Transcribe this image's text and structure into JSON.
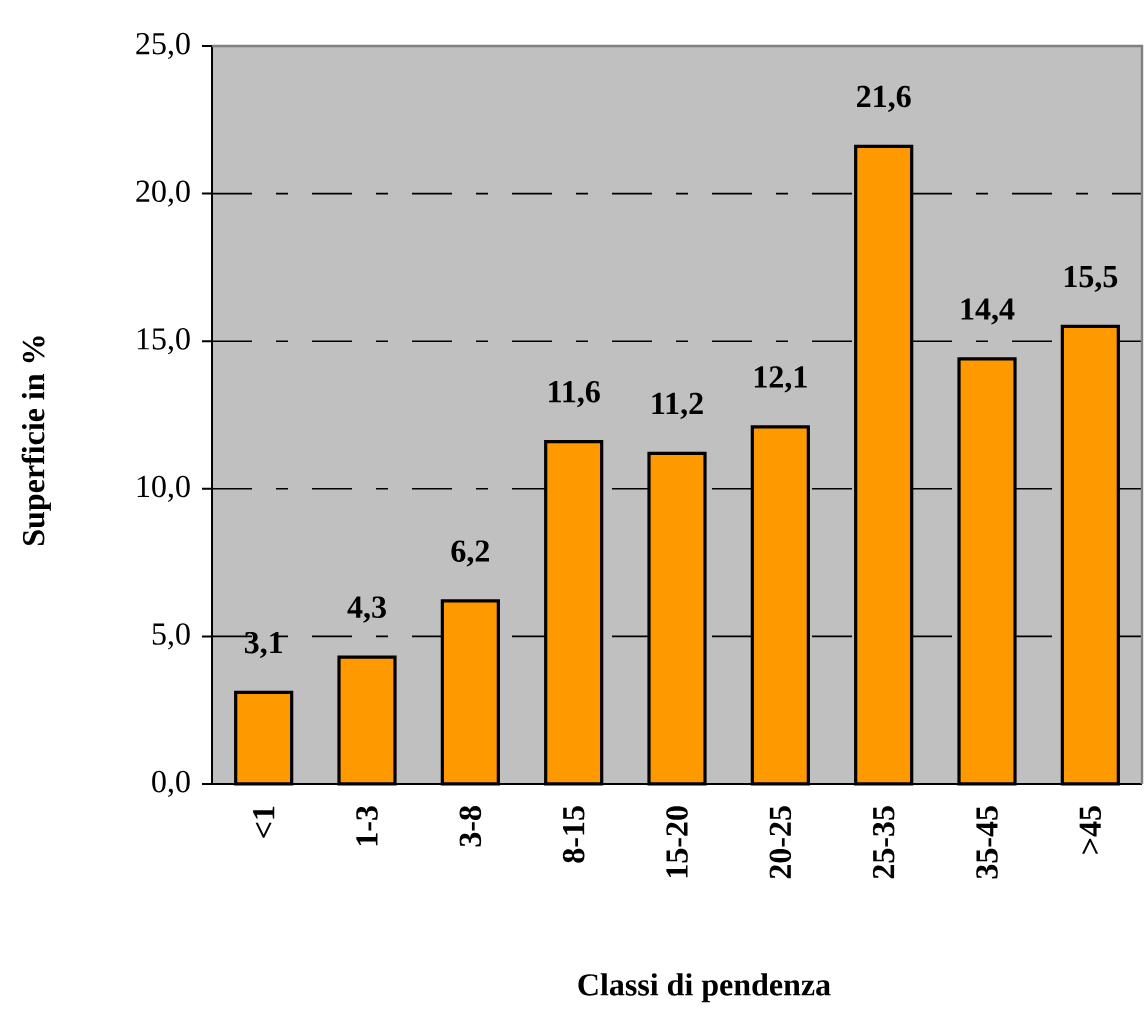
{
  "chart_data": {
    "type": "bar",
    "xlabel": "Classi di pendenza",
    "ylabel": "Superficie in %",
    "categories": [
      "<1",
      "1-3",
      "3-8",
      "8-15",
      "15-20",
      "20-25",
      "25-35",
      "35-45",
      ">45"
    ],
    "values": [
      3.1,
      4.3,
      6.2,
      11.6,
      11.2,
      12.1,
      21.6,
      14.4,
      15.5
    ],
    "value_labels": [
      "3,1",
      "4,3",
      "6,2",
      "11,6",
      "11,2",
      "12,1",
      "21,6",
      "14,4",
      "15,5"
    ],
    "color": "#ff9900",
    "ylim": [
      0,
      25
    ],
    "yticks": [
      {
        "value": 0,
        "label": "0,0"
      },
      {
        "value": 5,
        "label": "5,0"
      },
      {
        "value": 10,
        "label": "10,0"
      },
      {
        "value": 15,
        "label": "15,0"
      },
      {
        "value": 20,
        "label": "20,0"
      },
      {
        "value": 25,
        "label": "25,0"
      }
    ],
    "grid": "y"
  }
}
